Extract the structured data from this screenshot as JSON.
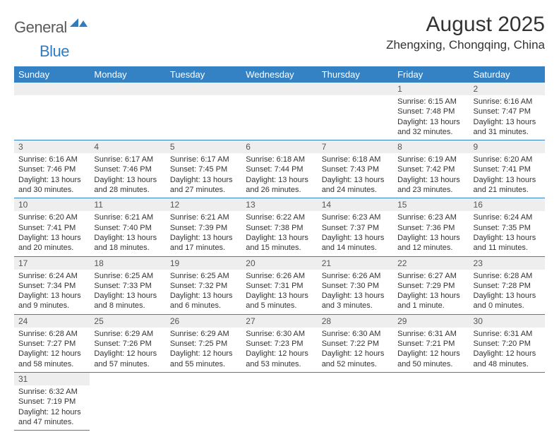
{
  "logo": {
    "text1": "General",
    "text2": "Blue"
  },
  "title": "August 2025",
  "location": "Zhengxing, Chongqing, China",
  "colors": {
    "header_bg": "#3481c4",
    "header_text": "#ffffff",
    "daynum_bg": "#eeeeee",
    "border": "#3481c4",
    "text": "#333333",
    "logo_gray": "#5a5a5a",
    "logo_blue": "#2f7dc0"
  },
  "dayHeaders": [
    "Sunday",
    "Monday",
    "Tuesday",
    "Wednesday",
    "Thursday",
    "Friday",
    "Saturday"
  ],
  "weeks": [
    [
      {
        "n": "",
        "sr": "",
        "ss": "",
        "dl": ""
      },
      {
        "n": "",
        "sr": "",
        "ss": "",
        "dl": ""
      },
      {
        "n": "",
        "sr": "",
        "ss": "",
        "dl": ""
      },
      {
        "n": "",
        "sr": "",
        "ss": "",
        "dl": ""
      },
      {
        "n": "",
        "sr": "",
        "ss": "",
        "dl": ""
      },
      {
        "n": "1",
        "sr": "Sunrise: 6:15 AM",
        "ss": "Sunset: 7:48 PM",
        "dl": "Daylight: 13 hours and 32 minutes."
      },
      {
        "n": "2",
        "sr": "Sunrise: 6:16 AM",
        "ss": "Sunset: 7:47 PM",
        "dl": "Daylight: 13 hours and 31 minutes."
      }
    ],
    [
      {
        "n": "3",
        "sr": "Sunrise: 6:16 AM",
        "ss": "Sunset: 7:46 PM",
        "dl": "Daylight: 13 hours and 30 minutes."
      },
      {
        "n": "4",
        "sr": "Sunrise: 6:17 AM",
        "ss": "Sunset: 7:46 PM",
        "dl": "Daylight: 13 hours and 28 minutes."
      },
      {
        "n": "5",
        "sr": "Sunrise: 6:17 AM",
        "ss": "Sunset: 7:45 PM",
        "dl": "Daylight: 13 hours and 27 minutes."
      },
      {
        "n": "6",
        "sr": "Sunrise: 6:18 AM",
        "ss": "Sunset: 7:44 PM",
        "dl": "Daylight: 13 hours and 26 minutes."
      },
      {
        "n": "7",
        "sr": "Sunrise: 6:18 AM",
        "ss": "Sunset: 7:43 PM",
        "dl": "Daylight: 13 hours and 24 minutes."
      },
      {
        "n": "8",
        "sr": "Sunrise: 6:19 AM",
        "ss": "Sunset: 7:42 PM",
        "dl": "Daylight: 13 hours and 23 minutes."
      },
      {
        "n": "9",
        "sr": "Sunrise: 6:20 AM",
        "ss": "Sunset: 7:41 PM",
        "dl": "Daylight: 13 hours and 21 minutes."
      }
    ],
    [
      {
        "n": "10",
        "sr": "Sunrise: 6:20 AM",
        "ss": "Sunset: 7:41 PM",
        "dl": "Daylight: 13 hours and 20 minutes."
      },
      {
        "n": "11",
        "sr": "Sunrise: 6:21 AM",
        "ss": "Sunset: 7:40 PM",
        "dl": "Daylight: 13 hours and 18 minutes."
      },
      {
        "n": "12",
        "sr": "Sunrise: 6:21 AM",
        "ss": "Sunset: 7:39 PM",
        "dl": "Daylight: 13 hours and 17 minutes."
      },
      {
        "n": "13",
        "sr": "Sunrise: 6:22 AM",
        "ss": "Sunset: 7:38 PM",
        "dl": "Daylight: 13 hours and 15 minutes."
      },
      {
        "n": "14",
        "sr": "Sunrise: 6:23 AM",
        "ss": "Sunset: 7:37 PM",
        "dl": "Daylight: 13 hours and 14 minutes."
      },
      {
        "n": "15",
        "sr": "Sunrise: 6:23 AM",
        "ss": "Sunset: 7:36 PM",
        "dl": "Daylight: 13 hours and 12 minutes."
      },
      {
        "n": "16",
        "sr": "Sunrise: 6:24 AM",
        "ss": "Sunset: 7:35 PM",
        "dl": "Daylight: 13 hours and 11 minutes."
      }
    ],
    [
      {
        "n": "17",
        "sr": "Sunrise: 6:24 AM",
        "ss": "Sunset: 7:34 PM",
        "dl": "Daylight: 13 hours and 9 minutes."
      },
      {
        "n": "18",
        "sr": "Sunrise: 6:25 AM",
        "ss": "Sunset: 7:33 PM",
        "dl": "Daylight: 13 hours and 8 minutes."
      },
      {
        "n": "19",
        "sr": "Sunrise: 6:25 AM",
        "ss": "Sunset: 7:32 PM",
        "dl": "Daylight: 13 hours and 6 minutes."
      },
      {
        "n": "20",
        "sr": "Sunrise: 6:26 AM",
        "ss": "Sunset: 7:31 PM",
        "dl": "Daylight: 13 hours and 5 minutes."
      },
      {
        "n": "21",
        "sr": "Sunrise: 6:26 AM",
        "ss": "Sunset: 7:30 PM",
        "dl": "Daylight: 13 hours and 3 minutes."
      },
      {
        "n": "22",
        "sr": "Sunrise: 6:27 AM",
        "ss": "Sunset: 7:29 PM",
        "dl": "Daylight: 13 hours and 1 minute."
      },
      {
        "n": "23",
        "sr": "Sunrise: 6:28 AM",
        "ss": "Sunset: 7:28 PM",
        "dl": "Daylight: 13 hours and 0 minutes."
      }
    ],
    [
      {
        "n": "24",
        "sr": "Sunrise: 6:28 AM",
        "ss": "Sunset: 7:27 PM",
        "dl": "Daylight: 12 hours and 58 minutes."
      },
      {
        "n": "25",
        "sr": "Sunrise: 6:29 AM",
        "ss": "Sunset: 7:26 PM",
        "dl": "Daylight: 12 hours and 57 minutes."
      },
      {
        "n": "26",
        "sr": "Sunrise: 6:29 AM",
        "ss": "Sunset: 7:25 PM",
        "dl": "Daylight: 12 hours and 55 minutes."
      },
      {
        "n": "27",
        "sr": "Sunrise: 6:30 AM",
        "ss": "Sunset: 7:23 PM",
        "dl": "Daylight: 12 hours and 53 minutes."
      },
      {
        "n": "28",
        "sr": "Sunrise: 6:30 AM",
        "ss": "Sunset: 7:22 PM",
        "dl": "Daylight: 12 hours and 52 minutes."
      },
      {
        "n": "29",
        "sr": "Sunrise: 6:31 AM",
        "ss": "Sunset: 7:21 PM",
        "dl": "Daylight: 12 hours and 50 minutes."
      },
      {
        "n": "30",
        "sr": "Sunrise: 6:31 AM",
        "ss": "Sunset: 7:20 PM",
        "dl": "Daylight: 12 hours and 48 minutes."
      }
    ],
    [
      {
        "n": "31",
        "sr": "Sunrise: 6:32 AM",
        "ss": "Sunset: 7:19 PM",
        "dl": "Daylight: 12 hours and 47 minutes."
      },
      {
        "n": "",
        "sr": "",
        "ss": "",
        "dl": ""
      },
      {
        "n": "",
        "sr": "",
        "ss": "",
        "dl": ""
      },
      {
        "n": "",
        "sr": "",
        "ss": "",
        "dl": ""
      },
      {
        "n": "",
        "sr": "",
        "ss": "",
        "dl": ""
      },
      {
        "n": "",
        "sr": "",
        "ss": "",
        "dl": ""
      },
      {
        "n": "",
        "sr": "",
        "ss": "",
        "dl": ""
      }
    ]
  ]
}
